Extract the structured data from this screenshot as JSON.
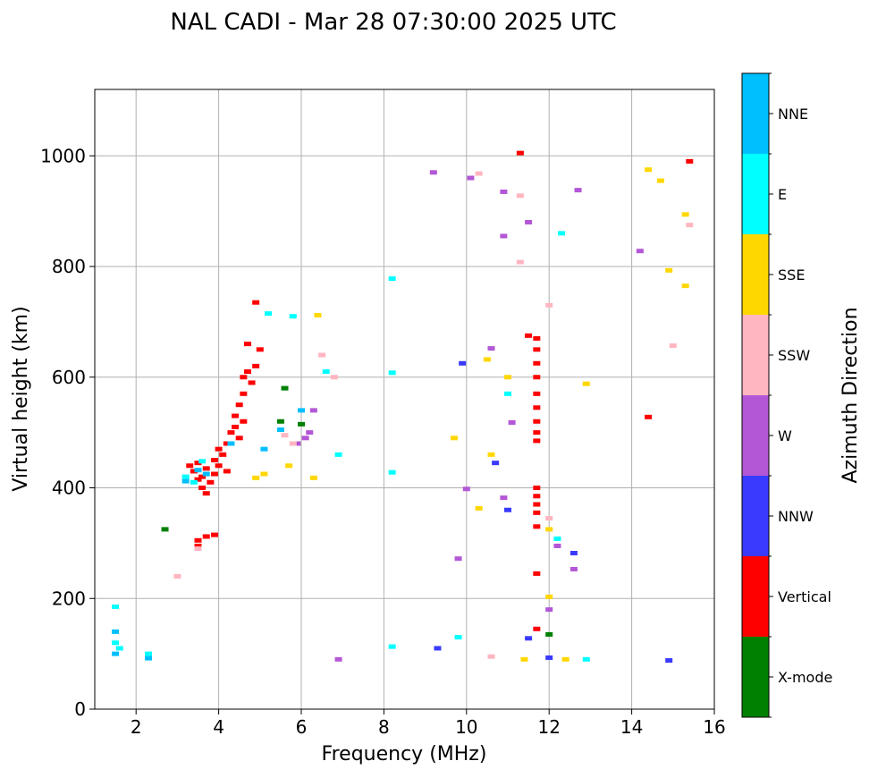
{
  "chart_data": {
    "type": "scatter",
    "title": "NAL CADI - Mar 28 07:30:00 2025 UTC",
    "xlabel": "Frequency (MHz)",
    "ylabel": "Virtual height (km)",
    "xlim": [
      1,
      16
    ],
    "ylim": [
      0,
      1120
    ],
    "xticks": [
      2,
      4,
      6,
      8,
      10,
      12,
      14,
      16
    ],
    "yticks": [
      0,
      200,
      400,
      600,
      800,
      1000
    ],
    "grid": true,
    "colorbar": {
      "label": "Azimuth Direction",
      "categories": [
        {
          "name": "X-mode",
          "color": "#008000"
        },
        {
          "name": "Vertical",
          "color": "#ff0000"
        },
        {
          "name": "NNW",
          "color": "#3a3aff"
        },
        {
          "name": "W",
          "color": "#b357d6"
        },
        {
          "name": "SSW",
          "color": "#ffb6c1"
        },
        {
          "name": "SSE",
          "color": "#ffd700"
        },
        {
          "name": "E",
          "color": "#00ffff"
        },
        {
          "name": "NNE",
          "color": "#00bfff"
        }
      ]
    },
    "series": [
      {
        "category": "Vertical",
        "points": [
          [
            3.3,
            440
          ],
          [
            3.4,
            430
          ],
          [
            3.5,
            445
          ],
          [
            3.6,
            420
          ],
          [
            3.7,
            435
          ],
          [
            3.8,
            410
          ],
          [
            3.9,
            450
          ],
          [
            4.0,
            440
          ],
          [
            4.1,
            460
          ],
          [
            4.2,
            430
          ],
          [
            3.6,
            400
          ],
          [
            3.7,
            390
          ],
          [
            3.5,
            415
          ],
          [
            3.9,
            425
          ],
          [
            4.0,
            470
          ],
          [
            4.2,
            480
          ],
          [
            4.3,
            500
          ],
          [
            4.4,
            510
          ],
          [
            4.4,
            530
          ],
          [
            4.5,
            550
          ],
          [
            4.6,
            570
          ],
          [
            4.6,
            600
          ],
          [
            4.7,
            610
          ],
          [
            4.5,
            490
          ],
          [
            4.6,
            520
          ],
          [
            4.8,
            590
          ],
          [
            4.9,
            620
          ],
          [
            4.7,
            660
          ],
          [
            4.9,
            735
          ],
          [
            5.0,
            650
          ],
          [
            3.5,
            305
          ],
          [
            3.5,
            295
          ],
          [
            3.9,
            315
          ],
          [
            3.7,
            312
          ],
          [
            11.7,
            485
          ],
          [
            11.7,
            500
          ],
          [
            11.7,
            520
          ],
          [
            11.7,
            545
          ],
          [
            11.7,
            570
          ],
          [
            11.7,
            600
          ],
          [
            11.7,
            625
          ],
          [
            11.7,
            650
          ],
          [
            11.7,
            670
          ],
          [
            11.7,
            400
          ],
          [
            11.7,
            385
          ],
          [
            11.7,
            370
          ],
          [
            11.7,
            355
          ],
          [
            11.7,
            330
          ],
          [
            11.7,
            245
          ],
          [
            11.7,
            145
          ],
          [
            11.3,
            1005
          ],
          [
            14.4,
            528
          ],
          [
            15.4,
            990
          ],
          [
            11.5,
            675
          ]
        ]
      },
      {
        "category": "NNW",
        "points": [
          [
            10.7,
            445
          ],
          [
            11.0,
            360
          ],
          [
            12.6,
            282
          ],
          [
            9.9,
            625
          ],
          [
            9.3,
            110
          ],
          [
            12.0,
            93
          ],
          [
            14.9,
            88
          ],
          [
            11.5,
            128
          ]
        ]
      },
      {
        "category": "W",
        "points": [
          [
            6.2,
            500
          ],
          [
            6.1,
            490
          ],
          [
            6.3,
            540
          ],
          [
            5.9,
            480
          ],
          [
            10.1,
            960
          ],
          [
            9.2,
            970
          ],
          [
            10.9,
            935
          ],
          [
            11.5,
            880
          ],
          [
            10.9,
            855
          ],
          [
            12.6,
            253
          ],
          [
            12.2,
            295
          ],
          [
            12.7,
            938
          ],
          [
            11.1,
            518
          ],
          [
            10.9,
            382
          ],
          [
            10.6,
            652
          ],
          [
            12.0,
            180
          ],
          [
            14.2,
            828
          ],
          [
            6.9,
            90
          ],
          [
            9.8,
            272
          ],
          [
            10.0,
            398
          ]
        ]
      },
      {
        "category": "SSW",
        "points": [
          [
            11.3,
            928
          ],
          [
            11.3,
            808
          ],
          [
            15.4,
            875
          ],
          [
            10.3,
            968
          ],
          [
            15.0,
            657
          ],
          [
            3.0,
            240
          ],
          [
            3.5,
            290
          ],
          [
            10.6,
            95
          ],
          [
            12.0,
            345
          ],
          [
            12.0,
            730
          ],
          [
            6.5,
            640
          ],
          [
            6.8,
            600
          ],
          [
            5.8,
            480
          ],
          [
            5.6,
            495
          ]
        ]
      },
      {
        "category": "SSE",
        "points": [
          [
            4.9,
            418
          ],
          [
            5.1,
            425
          ],
          [
            5.7,
            440
          ],
          [
            6.3,
            418
          ],
          [
            10.5,
            632
          ],
          [
            12.0,
            203
          ],
          [
            12.4,
            90
          ],
          [
            12.9,
            588
          ],
          [
            14.4,
            975
          ],
          [
            14.7,
            955
          ],
          [
            14.9,
            793
          ],
          [
            15.3,
            765
          ],
          [
            15.3,
            894
          ],
          [
            11.4,
            90
          ],
          [
            10.3,
            363
          ],
          [
            10.6,
            460
          ],
          [
            11.0,
            600
          ],
          [
            12.0,
            325
          ],
          [
            9.7,
            490
          ],
          [
            6.4,
            712
          ]
        ]
      },
      {
        "category": "E",
        "points": [
          [
            3.2,
            420
          ],
          [
            3.4,
            410
          ],
          [
            3.6,
            448
          ],
          [
            8.2,
            778
          ],
          [
            8.2,
            608
          ],
          [
            8.2,
            428
          ],
          [
            11.0,
            570
          ],
          [
            12.3,
            860
          ],
          [
            12.9,
            90
          ],
          [
            8.2,
            113
          ],
          [
            6.9,
            460
          ],
          [
            6.6,
            610
          ],
          [
            5.8,
            710
          ],
          [
            5.2,
            715
          ],
          [
            1.5,
            185
          ],
          [
            1.5,
            120
          ],
          [
            1.6,
            110
          ],
          [
            2.3,
            100
          ],
          [
            9.8,
            130
          ],
          [
            12.2,
            308
          ]
        ]
      },
      {
        "category": "NNE",
        "points": [
          [
            3.2,
            412
          ],
          [
            3.5,
            432
          ],
          [
            3.7,
            425
          ],
          [
            1.5,
            140
          ],
          [
            1.5,
            100
          ],
          [
            2.3,
            92
          ],
          [
            4.3,
            480
          ],
          [
            5.1,
            470
          ],
          [
            5.5,
            505
          ],
          [
            6.0,
            540
          ]
        ]
      },
      {
        "category": "X-mode",
        "points": [
          [
            12.0,
            135
          ],
          [
            5.6,
            580
          ],
          [
            6.0,
            515
          ],
          [
            5.5,
            520
          ],
          [
            2.7,
            325
          ]
        ]
      }
    ]
  }
}
